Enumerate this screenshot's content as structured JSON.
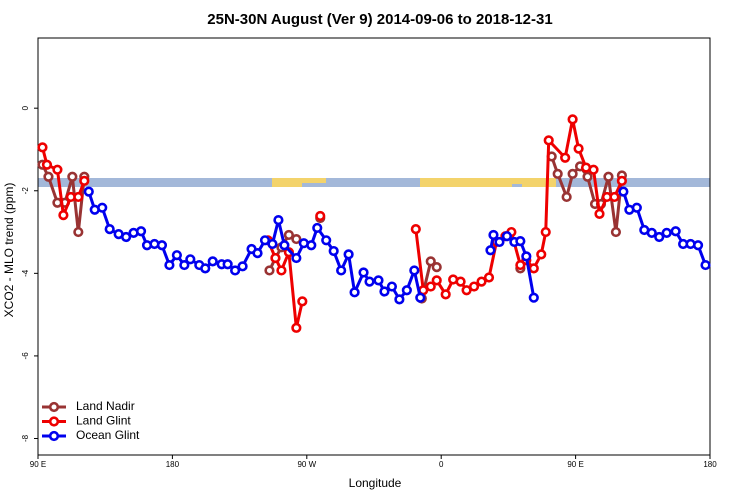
{
  "chart_data": {
    "type": "line",
    "title": "25N-30N August (Ver 9)   2014-09-06 to 2018-12-31",
    "x_label": "Longitude",
    "y_label": "XCO2 - MLO trend (ppm)",
    "xlim": [
      90,
      540
    ],
    "ylim": [
      -8.4,
      1.7
    ],
    "xticks": [
      {
        "value": 90,
        "label": "90 E"
      },
      {
        "value": 180,
        "label": "180"
      },
      {
        "value": 270,
        "label": "90 W"
      },
      {
        "value": 360,
        "label": "0"
      },
      {
        "value": 450,
        "label": "90 E"
      },
      {
        "value": 540,
        "label": "180"
      }
    ],
    "yticks": [
      0,
      -2,
      -4,
      -6,
      -8
    ],
    "legend": "lower left",
    "series": [
      {
        "name": "Land Nadir",
        "color": "#993333",
        "x": [
          93,
          97,
          103,
          108,
          113,
          117,
          121,
          null,
          245,
          249,
          253,
          258,
          263,
          null,
          279,
          null,
          347,
          353,
          357,
          null,
          413,
          null,
          434,
          438,
          444,
          448,
          453,
          458,
          463,
          467,
          472,
          477,
          481
        ],
        "values": [
          -1.37,
          -1.66,
          -2.29,
          -2.29,
          -1.66,
          -3.0,
          -1.66,
          null,
          -3.93,
          -3.63,
          -3.37,
          -3.07,
          -3.17,
          null,
          -2.66,
          null,
          -4.61,
          -3.71,
          -3.85,
          null,
          -3.88,
          null,
          -1.17,
          -1.59,
          -2.15,
          -1.59,
          -1.41,
          -1.66,
          -2.32,
          -2.32,
          -1.66,
          -3.0,
          -1.63
        ]
      },
      {
        "name": "Land Glint",
        "color": "#ee0000",
        "x": [
          93,
          96,
          103,
          107,
          112,
          117,
          121,
          null,
          244,
          249,
          253,
          258,
          263,
          267,
          null,
          279,
          null,
          343,
          348,
          353,
          357,
          363,
          368,
          373,
          377,
          382,
          387,
          392,
          397,
          403,
          407,
          413,
          417,
          422,
          427,
          430,
          432,
          443,
          448,
          452,
          457,
          462,
          466,
          471,
          476,
          481
        ],
        "values": [
          -0.95,
          -1.37,
          -1.49,
          -2.59,
          -2.15,
          -2.15,
          -1.76,
          null,
          -3.2,
          -3.63,
          -3.93,
          -3.49,
          -5.32,
          -4.68,
          null,
          -2.61,
          null,
          -2.93,
          -4.41,
          -4.32,
          -4.17,
          -4.51,
          -4.15,
          -4.2,
          -4.41,
          -4.32,
          -4.2,
          -4.1,
          -3.24,
          -3.1,
          -3.0,
          -3.8,
          -3.68,
          -3.88,
          -3.54,
          -3.0,
          -0.78,
          -1.2,
          -0.27,
          -0.98,
          -1.44,
          -1.49,
          -2.56,
          -2.15,
          -2.15,
          -1.76
        ]
      },
      {
        "name": "Ocean Glint",
        "color": "#0000ee",
        "x": [
          124,
          128,
          133,
          138,
          144,
          149,
          154,
          159,
          163,
          168,
          173,
          178,
          183,
          188,
          192,
          198,
          202,
          207,
          213,
          217,
          222,
          227,
          233,
          237,
          242,
          247,
          251,
          255,
          263,
          268,
          273,
          277,
          283,
          288,
          293,
          298,
          302,
          308,
          312,
          318,
          322,
          327,
          332,
          337,
          342,
          346,
          null,
          393,
          395,
          399,
          404,
          409,
          413,
          417,
          422,
          null,
          482,
          486,
          491,
          496,
          501,
          506,
          511,
          517,
          522,
          527,
          532,
          537
        ],
        "values": [
          -2.02,
          -2.46,
          -2.41,
          -2.93,
          -3.05,
          -3.12,
          -3.02,
          -2.98,
          -3.32,
          -3.29,
          -3.32,
          -3.8,
          -3.56,
          -3.8,
          -3.66,
          -3.8,
          -3.88,
          -3.71,
          -3.78,
          -3.78,
          -3.93,
          -3.83,
          -3.41,
          -3.51,
          -3.2,
          -3.29,
          -2.71,
          -3.32,
          -3.63,
          -3.27,
          -3.32,
          -2.9,
          -3.2,
          -3.46,
          -3.93,
          -3.54,
          -4.46,
          -3.98,
          -4.2,
          -4.17,
          -4.44,
          -4.32,
          -4.63,
          -4.41,
          -3.93,
          -4.59,
          null,
          -3.44,
          -3.07,
          -3.24,
          -3.1,
          -3.24,
          -3.22,
          -3.59,
          -4.59,
          null,
          -2.02,
          -2.46,
          -2.41,
          -2.95,
          -3.02,
          -3.12,
          -3.02,
          -2.98,
          -3.29,
          -3.29,
          -3.32,
          -3.8
        ]
      }
    ]
  }
}
